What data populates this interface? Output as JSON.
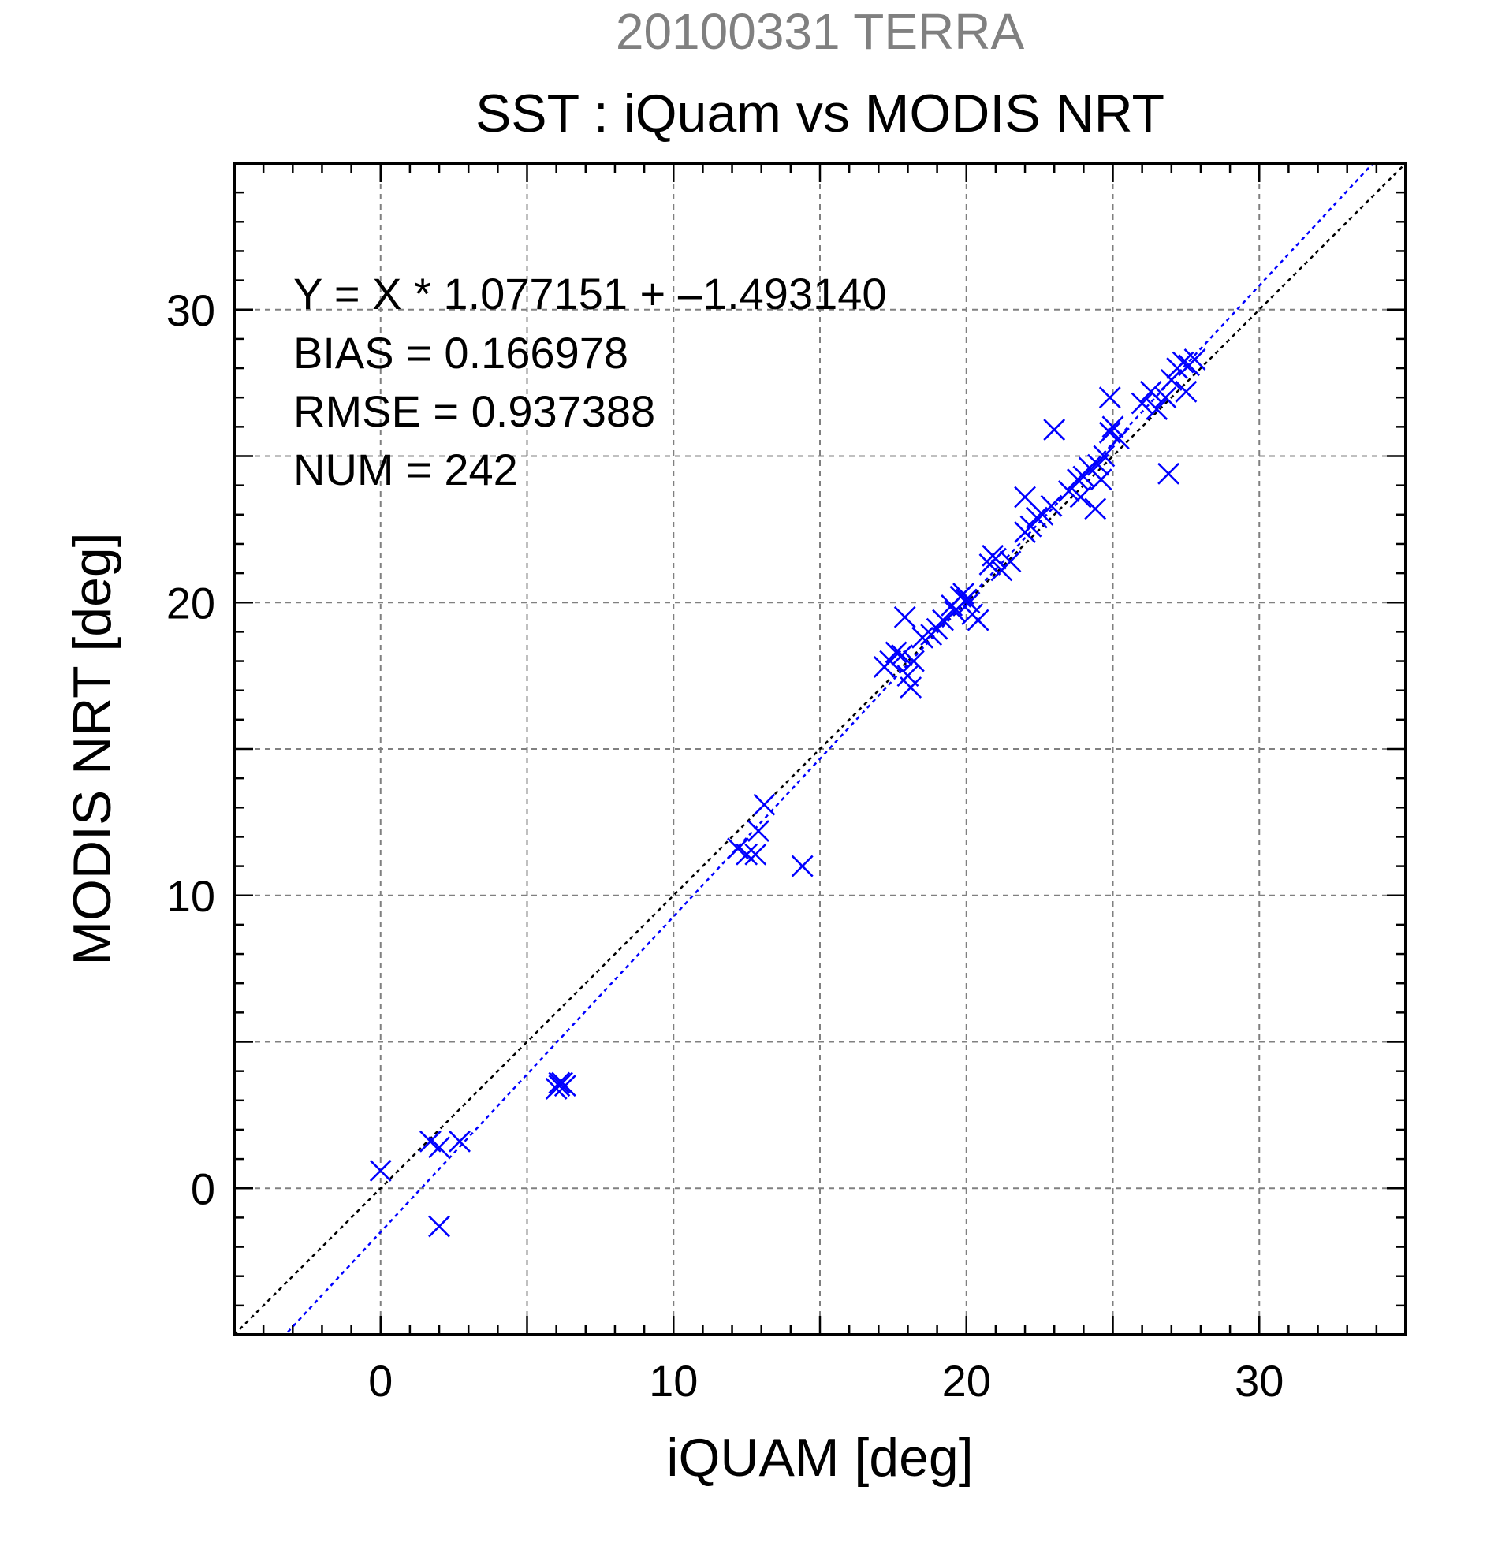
{
  "chart_data": {
    "type": "scatter",
    "suptitle": "20100331 TERRA",
    "title": "SST : iQuam vs MODIS NRT",
    "xlabel": "iQUAM [deg]",
    "ylabel": "MODIS NRT [deg]",
    "xlim": [
      -5,
      35
    ],
    "ylim": [
      -5,
      35
    ],
    "xticks": [
      0,
      10,
      20,
      30
    ],
    "yticks": [
      0,
      10,
      20,
      30
    ],
    "xtick_labels": [
      "0",
      "10",
      "20",
      "30"
    ],
    "ytick_labels": [
      "0",
      "10",
      "20",
      "30"
    ],
    "minor_step": 1,
    "grid_step": 5,
    "grid": true,
    "annotations": [
      "Y = X * 1.077151 + –1.493140",
      "BIAS = 0.166978",
      "RMSE = 0.937388",
      "NUM = 242"
    ],
    "regression": {
      "slope": 1.077151,
      "intercept": -1.49314
    },
    "colors": {
      "points": "#0000ff",
      "fit_line": "#0000ff",
      "identity_line": "#000000",
      "suptitle": "#808080",
      "grid": "#808080"
    },
    "series": [
      {
        "marker": "x",
        "x": [
          0.0,
          1.7,
          2.0,
          2.7,
          2.0,
          6.1,
          6.2,
          6.3,
          6.0,
          6.1,
          12.2,
          12.5,
          12.8,
          12.9,
          13.1,
          14.4,
          17.2,
          17.4,
          17.6,
          17.8,
          18.0,
          18.1,
          18.2,
          17.9,
          18.5,
          18.8,
          19.0,
          19.2,
          19.5,
          19.8,
          19.6,
          20.0,
          20.2,
          20.4,
          20.1,
          19.9,
          20.8,
          21.0,
          21.2,
          20.9,
          21.5,
          22.0,
          22.2,
          22.4,
          22.6,
          22.9,
          22.0,
          23.0,
          23.5,
          23.8,
          24.0,
          24.2,
          24.5,
          24.7,
          24.9,
          24.4,
          25.0,
          25.2,
          23.9,
          24.6,
          26.0,
          26.3,
          26.5,
          26.8,
          27.0,
          27.2,
          27.4,
          27.6,
          27.8,
          26.9,
          27.5,
          24.9
        ],
        "y": [
          0.6,
          1.6,
          1.4,
          1.6,
          -1.3,
          3.5,
          3.6,
          3.5,
          3.4,
          3.6,
          11.6,
          11.4,
          11.4,
          12.2,
          13.1,
          11.0,
          17.8,
          18.0,
          18.3,
          18.2,
          17.5,
          17.1,
          18.0,
          19.5,
          18.8,
          18.9,
          19.1,
          19.4,
          19.9,
          20.2,
          19.7,
          20.1,
          19.6,
          19.4,
          20.0,
          20.3,
          21.3,
          21.5,
          21.1,
          21.6,
          21.4,
          22.4,
          22.6,
          22.9,
          23.0,
          23.3,
          23.6,
          25.9,
          23.8,
          24.2,
          24.3,
          24.6,
          24.7,
          25.0,
          25.8,
          23.2,
          26.0,
          25.6,
          23.6,
          24.2,
          26.8,
          27.2,
          26.6,
          27.0,
          27.6,
          28.0,
          28.2,
          28.1,
          28.3,
          24.4,
          27.2,
          27.0
        ]
      }
    ]
  }
}
